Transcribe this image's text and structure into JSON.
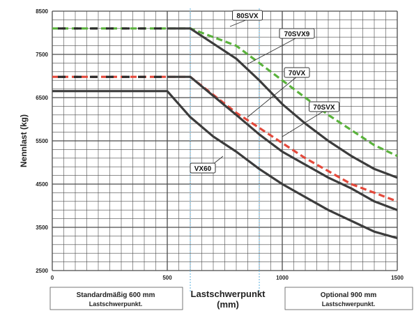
{
  "chart_data": {
    "type": "line",
    "title": "",
    "xlabel": "Lastschwerpunkt",
    "xlabel_unit": "(mm)",
    "ylabel": "Nennlast (kg)",
    "xlim": [
      0,
      1500
    ],
    "ylim": [
      2500,
      8500
    ],
    "x_ticks": [
      0,
      500,
      1000,
      1500
    ],
    "y_ticks": [
      2500,
      3500,
      4500,
      5500,
      6500,
      7500,
      8500
    ],
    "grid": true,
    "reference_lines_x": [
      600,
      900
    ],
    "series": [
      {
        "name": "80SVX",
        "color": "#5ab23c",
        "style": "dashed",
        "points": [
          [
            0,
            8100
          ],
          [
            600,
            8100
          ],
          [
            800,
            7700
          ],
          [
            900,
            7300
          ],
          [
            1000,
            6900
          ],
          [
            1100,
            6500
          ],
          [
            1200,
            6100
          ],
          [
            1300,
            5750
          ],
          [
            1400,
            5400
          ],
          [
            1500,
            5150
          ]
        ]
      },
      {
        "name": "70SVX9",
        "color": "#3c3c3c",
        "style": "solid",
        "points": [
          [
            500,
            8100
          ],
          [
            600,
            8100
          ],
          [
            800,
            7400
          ],
          [
            900,
            6900
          ],
          [
            1000,
            6350
          ],
          [
            1100,
            5900
          ],
          [
            1200,
            5500
          ],
          [
            1300,
            5150
          ],
          [
            1400,
            4850
          ],
          [
            1500,
            4650
          ]
        ]
      },
      {
        "name": "70VX",
        "color": "#e3493b",
        "style": "dashed",
        "points": [
          [
            0,
            6980
          ],
          [
            600,
            6980
          ],
          [
            800,
            6150
          ],
          [
            900,
            5800
          ],
          [
            1000,
            5450
          ],
          [
            1100,
            5100
          ],
          [
            1200,
            4800
          ],
          [
            1300,
            4500
          ],
          [
            1400,
            4300
          ],
          [
            1500,
            4100
          ]
        ]
      },
      {
        "name": "70SVX",
        "color": "#3c3c3c",
        "style": "solid",
        "points": [
          [
            500,
            6980
          ],
          [
            600,
            6980
          ],
          [
            800,
            6100
          ],
          [
            900,
            5650
          ],
          [
            1000,
            5250
          ],
          [
            1100,
            4950
          ],
          [
            1200,
            4650
          ],
          [
            1300,
            4400
          ],
          [
            1400,
            4100
          ],
          [
            1500,
            3900
          ]
        ]
      },
      {
        "name": "VX60",
        "color": "#3c3c3c",
        "style": "solid",
        "points": [
          [
            0,
            6650
          ],
          [
            500,
            6650
          ],
          [
            600,
            6050
          ],
          [
            700,
            5600
          ],
          [
            800,
            5250
          ],
          [
            900,
            4850
          ],
          [
            1000,
            4500
          ],
          [
            1100,
            4200
          ],
          [
            1200,
            3900
          ],
          [
            1300,
            3650
          ],
          [
            1400,
            3400
          ],
          [
            1500,
            3250
          ]
        ]
      }
    ],
    "series_labels": [
      "80SVX",
      "70SVX9",
      "70VX",
      "70SVX",
      "VX60"
    ],
    "annotations": {
      "left_box": {
        "line1": "Standardmäßig 600 mm",
        "line2": "Lastschwerpunkt."
      },
      "right_box": {
        "line1": "Optional 900 mm",
        "line2": "Lastschwerpunkt."
      }
    },
    "colors": {
      "grid": "#4a4a4a",
      "reference": "#7ec3e6",
      "text": "#222222"
    }
  }
}
